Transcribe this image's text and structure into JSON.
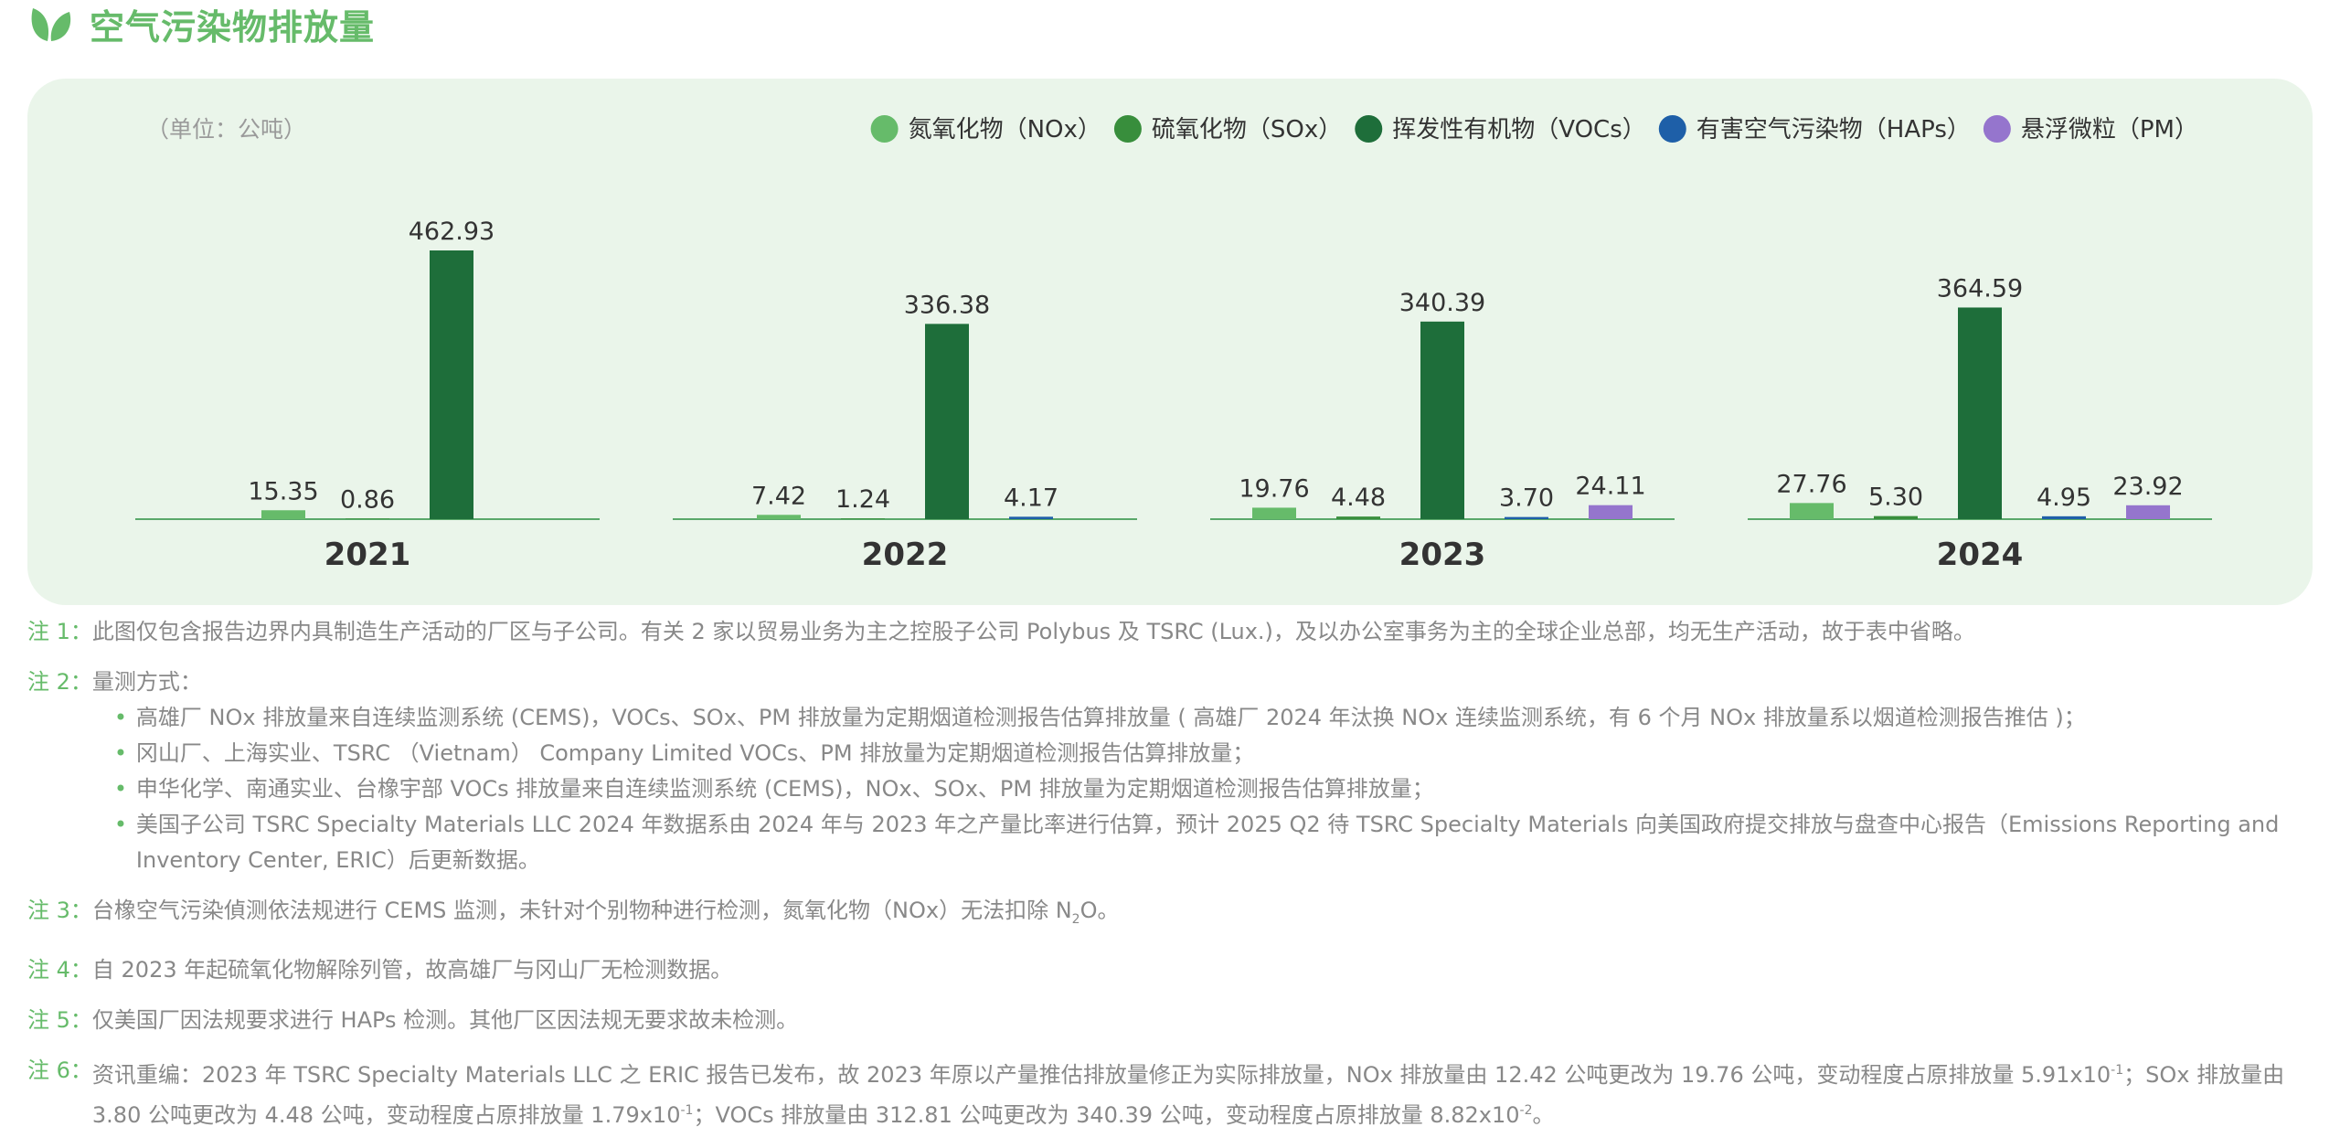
{
  "page_title": "空气污染物排放量",
  "icon": "leaf-icon",
  "colors": {
    "title_green": "#66bb6a",
    "panel_bg": "#eaf5ea",
    "nox": "#66bb6a",
    "sox": "#388e3c",
    "vocs": "#1e6e3a",
    "haps": "#1e5fa8",
    "pm": "#9575cd",
    "baseline": "#5aa86a"
  },
  "chart_data": {
    "type": "bar",
    "unit_label": "（单位：公吨）",
    "categories": [
      "2021",
      "2022",
      "2023",
      "2024"
    ],
    "series": [
      {
        "name": "氮氧化物（NOx）",
        "key": "nox",
        "values": [
          15.35,
          7.42,
          19.76,
          27.76
        ],
        "labels": [
          "15.35",
          "7.42",
          "19.76",
          "27.76"
        ]
      },
      {
        "name": "硫氧化物（SOx）",
        "key": "sox",
        "values": [
          0.86,
          1.24,
          4.48,
          5.3
        ],
        "labels": [
          "0.86",
          "1.24",
          "4.48",
          "5.30"
        ]
      },
      {
        "name": "挥发性有机物（VOCs）",
        "key": "vocs",
        "values": [
          462.93,
          336.38,
          340.39,
          364.59
        ],
        "labels": [
          "462.93",
          "336.38",
          "340.39",
          "364.59"
        ]
      },
      {
        "name": "有害空气污染物（HAPs）",
        "key": "haps",
        "values": [
          null,
          4.17,
          3.7,
          4.95
        ],
        "labels": [
          null,
          "4.17",
          "3.70",
          "4.95"
        ]
      },
      {
        "name": "悬浮微粒（PM）",
        "key": "pm",
        "values": [
          null,
          null,
          24.11,
          23.92
        ],
        "labels": [
          null,
          null,
          "24.11",
          "23.92"
        ]
      }
    ],
    "legend_position": "top-right",
    "grid": false
  },
  "notes": {
    "n1": {
      "label": "注 1：",
      "text": "此图仅包含报告边界内具制造生产活动的厂区与子公司。有关 2 家以贸易业务为主之控股子公司 Polybus 及 TSRC (Lux.)，及以办公室事务为主的全球企业总部，均无生产活动，故于表中省略。"
    },
    "n2": {
      "label": "注 2：",
      "text": "量测方式：",
      "items": [
        "高雄厂 NOx 排放量来自连续监测系统 (CEMS)，VOCs、SOx、PM 排放量为定期烟道检测报告估算排放量 ( 高雄厂 2024 年汰换 NOx 连续监测系统，有 6 个月 NOx 排放量系以烟道检测报告推估 )；",
        "冈山厂、上海实业、TSRC （Vietnam） Company Limited VOCs、PM 排放量为定期烟道检测报告估算排放量；",
        "申华化学、南通实业、台橡宇部 VOCs 排放量来自连续监测系统 (CEMS)，NOx、SOx、PM 排放量为定期烟道检测报告估算排放量；",
        "美国子公司 TSRC Specialty Materials LLC 2024 年数据系由 2024 年与 2023 年之产量比率进行估算，预计 2025 Q2 待 TSRC Specialty Materials 向美国政府提交排放与盘查中心报告（Emissions Reporting and Inventory Center, ERIC）后更新数据。"
      ]
    },
    "n3": {
      "label": "注 3：",
      "text_a": "台橡空气污染偵测依法规进行 CEMS 监测，未针对个别物种进行检测，氮氧化物（NOx）无法扣除 N",
      "sub": "2",
      "text_b": "O。"
    },
    "n4": {
      "label": "注 4：",
      "text": "自 2023 年起硫氧化物解除列管，故高雄厂与冈山厂无检测数据。"
    },
    "n5": {
      "label": "注 5：",
      "text": "仅美国厂因法规要求进行 HAPs 检测。其他厂区因法规无要求故未检测。"
    },
    "n6": {
      "label": "注 6：",
      "t1": "资讯重编：2023 年 TSRC Specialty Materials LLC 之 ERIC 报告已发布，故 2023 年原以产量推估排放量修正为实际排放量，NOx 排放量由 12.42 公吨更改为 19.76 公吨，变动程度占原排放量 5.91x10",
      "e1": "-1",
      "t2": "；SOx 排放量由 3.80 公吨更改为 4.48 公吨，变动程度占原排放量 1.79x10",
      "e2": "-1",
      "t3": "；VOCs 排放量由 312.81 公吨更改为 340.39 公吨，变动程度占原排放量 8.82x10",
      "e3": "-2",
      "t4": "。"
    }
  }
}
